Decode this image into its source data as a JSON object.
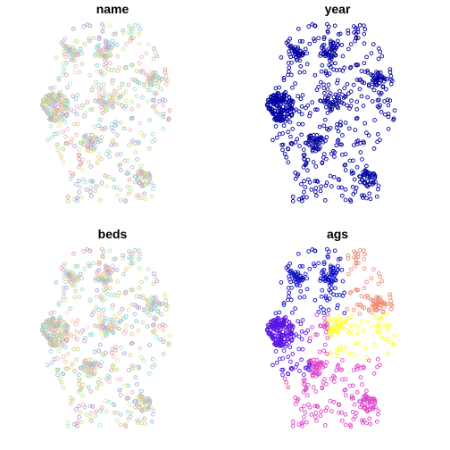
{
  "panels": [
    {
      "title": "name",
      "palette": "categorical"
    },
    {
      "title": "year",
      "palette": "blue"
    },
    {
      "title": "beds",
      "palette": "categorical"
    },
    {
      "title": "ags",
      "palette": "region"
    }
  ],
  "colors": {
    "background": "#ffffff",
    "year_point": "#0000a0",
    "categorical": [
      "#e6a0a0",
      "#a0c8e6",
      "#c8e6a0",
      "#e6c8a0",
      "#b4a0e6",
      "#a0e6d2",
      "#e6e6a0",
      "#f0b4d2",
      "#8cc8c8",
      "#d2d28c"
    ],
    "region": {
      "north": "#1010c8",
      "northeast": "#f08c78",
      "west": "#5a14e6",
      "center": "#ffff28",
      "south": "#dc46c8",
      "southwest": "#e84aa8"
    }
  },
  "chart_data": {
    "type": "scatter",
    "title": "",
    "description": "Point locations of hospitals in Germany; four small-multiple maps coloured by attribute",
    "facets": [
      "name",
      "year",
      "beds",
      "ags"
    ]
  }
}
